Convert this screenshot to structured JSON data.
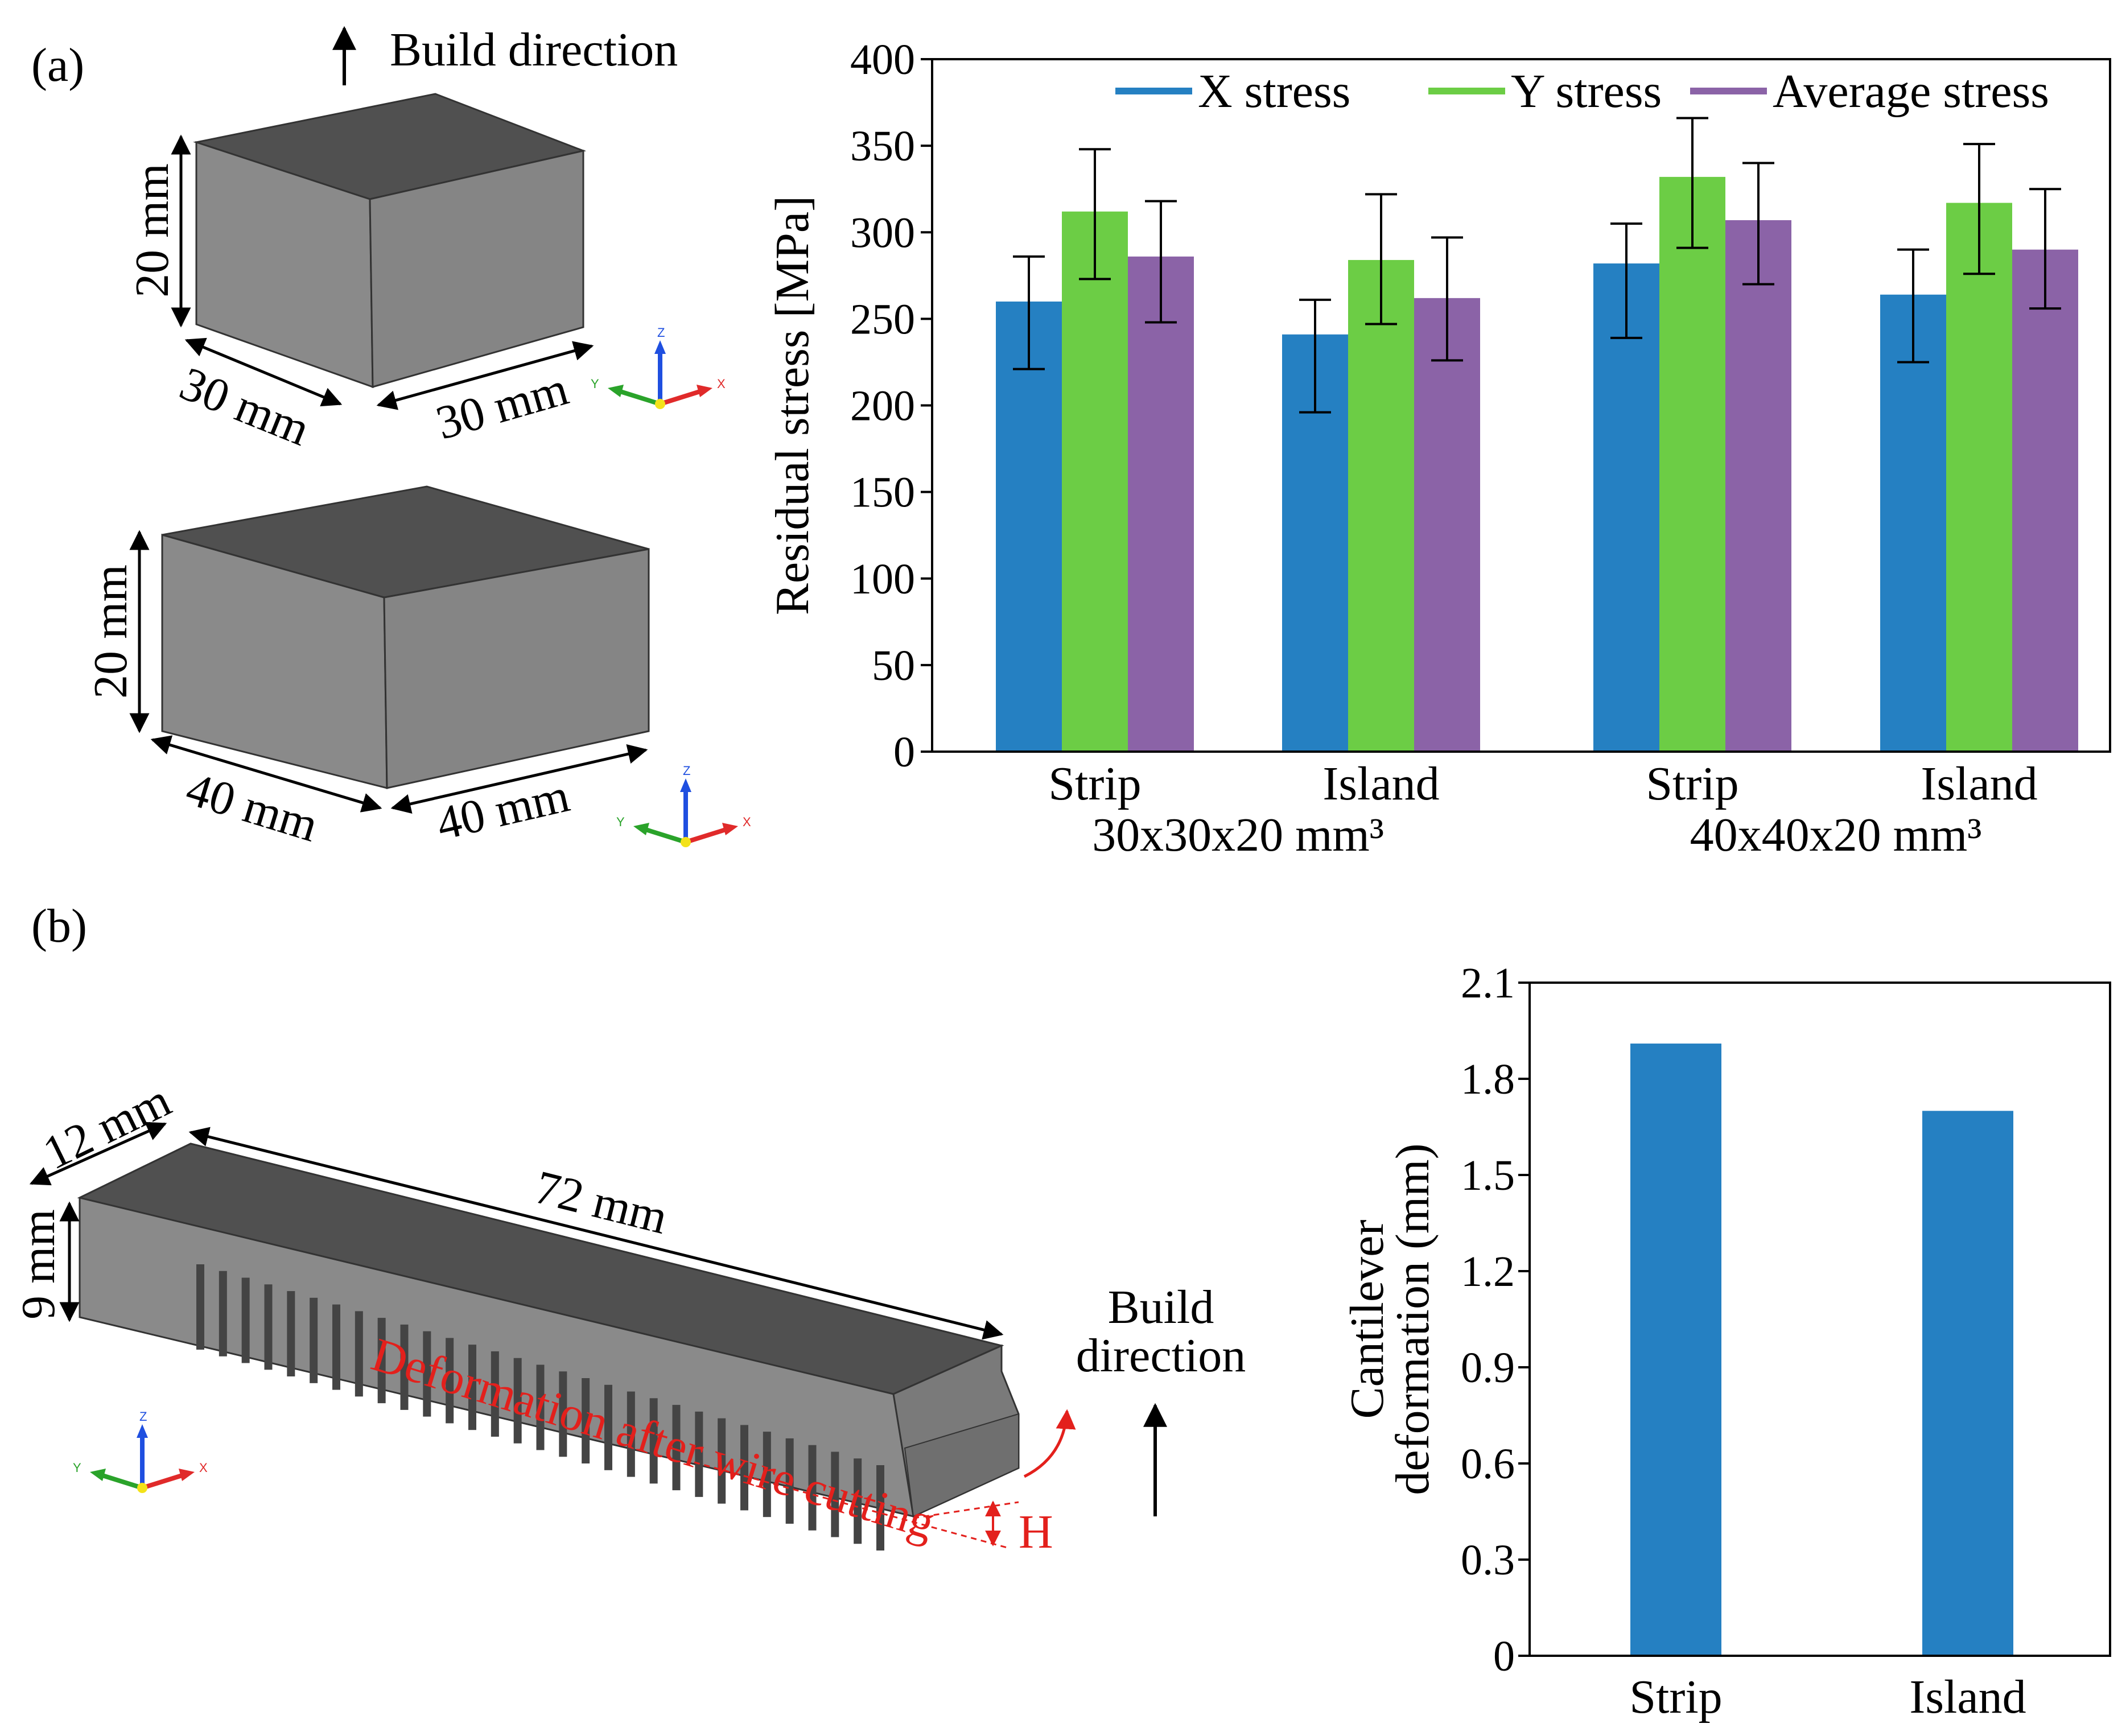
{
  "panel_a": {
    "label": "(a)",
    "build_direction": "Build direction",
    "cube1": {
      "height": "20 mm",
      "width_left": "30 mm",
      "width_right": "30 mm"
    },
    "cube2": {
      "height": "20 mm",
      "width_left": "40 mm",
      "width_right": "40 mm"
    },
    "axes_triad": {
      "x": "X",
      "y": "Y",
      "z": "Z"
    }
  },
  "panel_b": {
    "label": "(b)",
    "dim_width": "12 mm",
    "dim_height": "9 mm",
    "dim_length": "72 mm",
    "deformation_text": "Deformation after wire cutting",
    "h_label": "H",
    "build_direction_line1": "Build",
    "build_direction_line2": "direction"
  },
  "colors": {
    "x_stress": "#2580c2",
    "y_stress": "#6ccd45",
    "avg_stress": "#8b63a7",
    "deformation_bar": "#2580c2",
    "annotation_red": "#e3201c"
  },
  "chart_data": [
    {
      "type": "bar",
      "ylabel": "Residual stress [MPa]",
      "ylim": [
        0,
        400
      ],
      "yticks": [
        0,
        50,
        100,
        150,
        200,
        250,
        300,
        350,
        400
      ],
      "categories": [
        "Strip",
        "Island",
        "Strip",
        "Island"
      ],
      "groups": [
        "30x30x20 mm³",
        "40x40x20 mm³"
      ],
      "legend_position": "top-right",
      "series": [
        {
          "name": "X stress",
          "values": [
            260,
            241,
            282,
            264
          ],
          "errors": [
            [
              221,
              286
            ],
            [
              196,
              261
            ],
            [
              239,
              305
            ],
            [
              225,
              290
            ]
          ]
        },
        {
          "name": "Y stress",
          "values": [
            312,
            284,
            332,
            317
          ],
          "errors": [
            [
              273,
              348
            ],
            [
              247,
              322
            ],
            [
              291,
              366
            ],
            [
              276,
              351
            ]
          ]
        },
        {
          "name": "Average stress",
          "values": [
            286,
            262,
            307,
            290
          ],
          "errors": [
            [
              248,
              318
            ],
            [
              226,
              297
            ],
            [
              270,
              340
            ],
            [
              256,
              325
            ]
          ]
        }
      ]
    },
    {
      "type": "bar",
      "ylabel_line1": "Cantilever",
      "ylabel_line2": "deformation (mm)",
      "ylim": [
        0,
        2.1
      ],
      "yticks": [
        "0",
        "0.3",
        "0.6",
        "0.9",
        "1.2",
        "1.5",
        "1.8",
        "2.1"
      ],
      "categories": [
        "Strip",
        "Island"
      ],
      "values": [
        1.91,
        1.7
      ]
    }
  ]
}
